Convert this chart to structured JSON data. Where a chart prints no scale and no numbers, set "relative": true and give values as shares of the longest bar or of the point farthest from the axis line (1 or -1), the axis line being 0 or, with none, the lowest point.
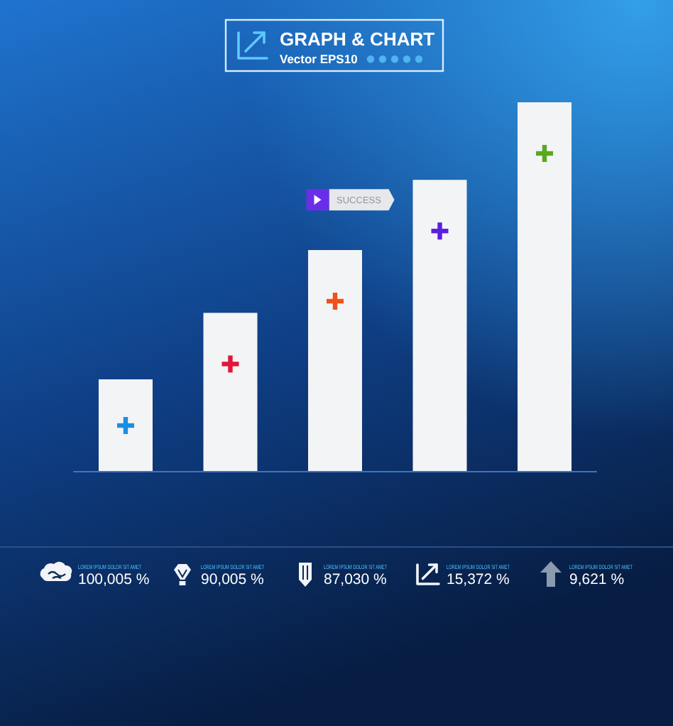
{
  "chart_data": [
    {
      "type": "bar",
      "title": "GRAPH & CHART",
      "subtitle": "Vector EPS10",
      "categories": [
        null,
        null,
        null,
        null,
        null
      ],
      "values": [
        0.25,
        0.43,
        0.6,
        0.79,
        1
      ],
      "color": "#f3f4f6",
      "relative": true,
      "annotations": [
        "SUCCESS"
      ]
    },
    {
      "type": "other",
      "annotations": [
        "LOREM IPSUM DOLOR SIT AMET",
        "100,005 %",
        "LOREM IPSUM DOLOR SIT AMET",
        "90,005 %",
        "LOREM IPSUM DOLOR SIT AMET",
        "87,030 %",
        "LOREM IPSUM DOLOR SIT AMET",
        "15,372 %",
        "LOREM IPSUM DOLOR SIT AMET",
        "9,621 %"
      ]
    }
  ]
}
